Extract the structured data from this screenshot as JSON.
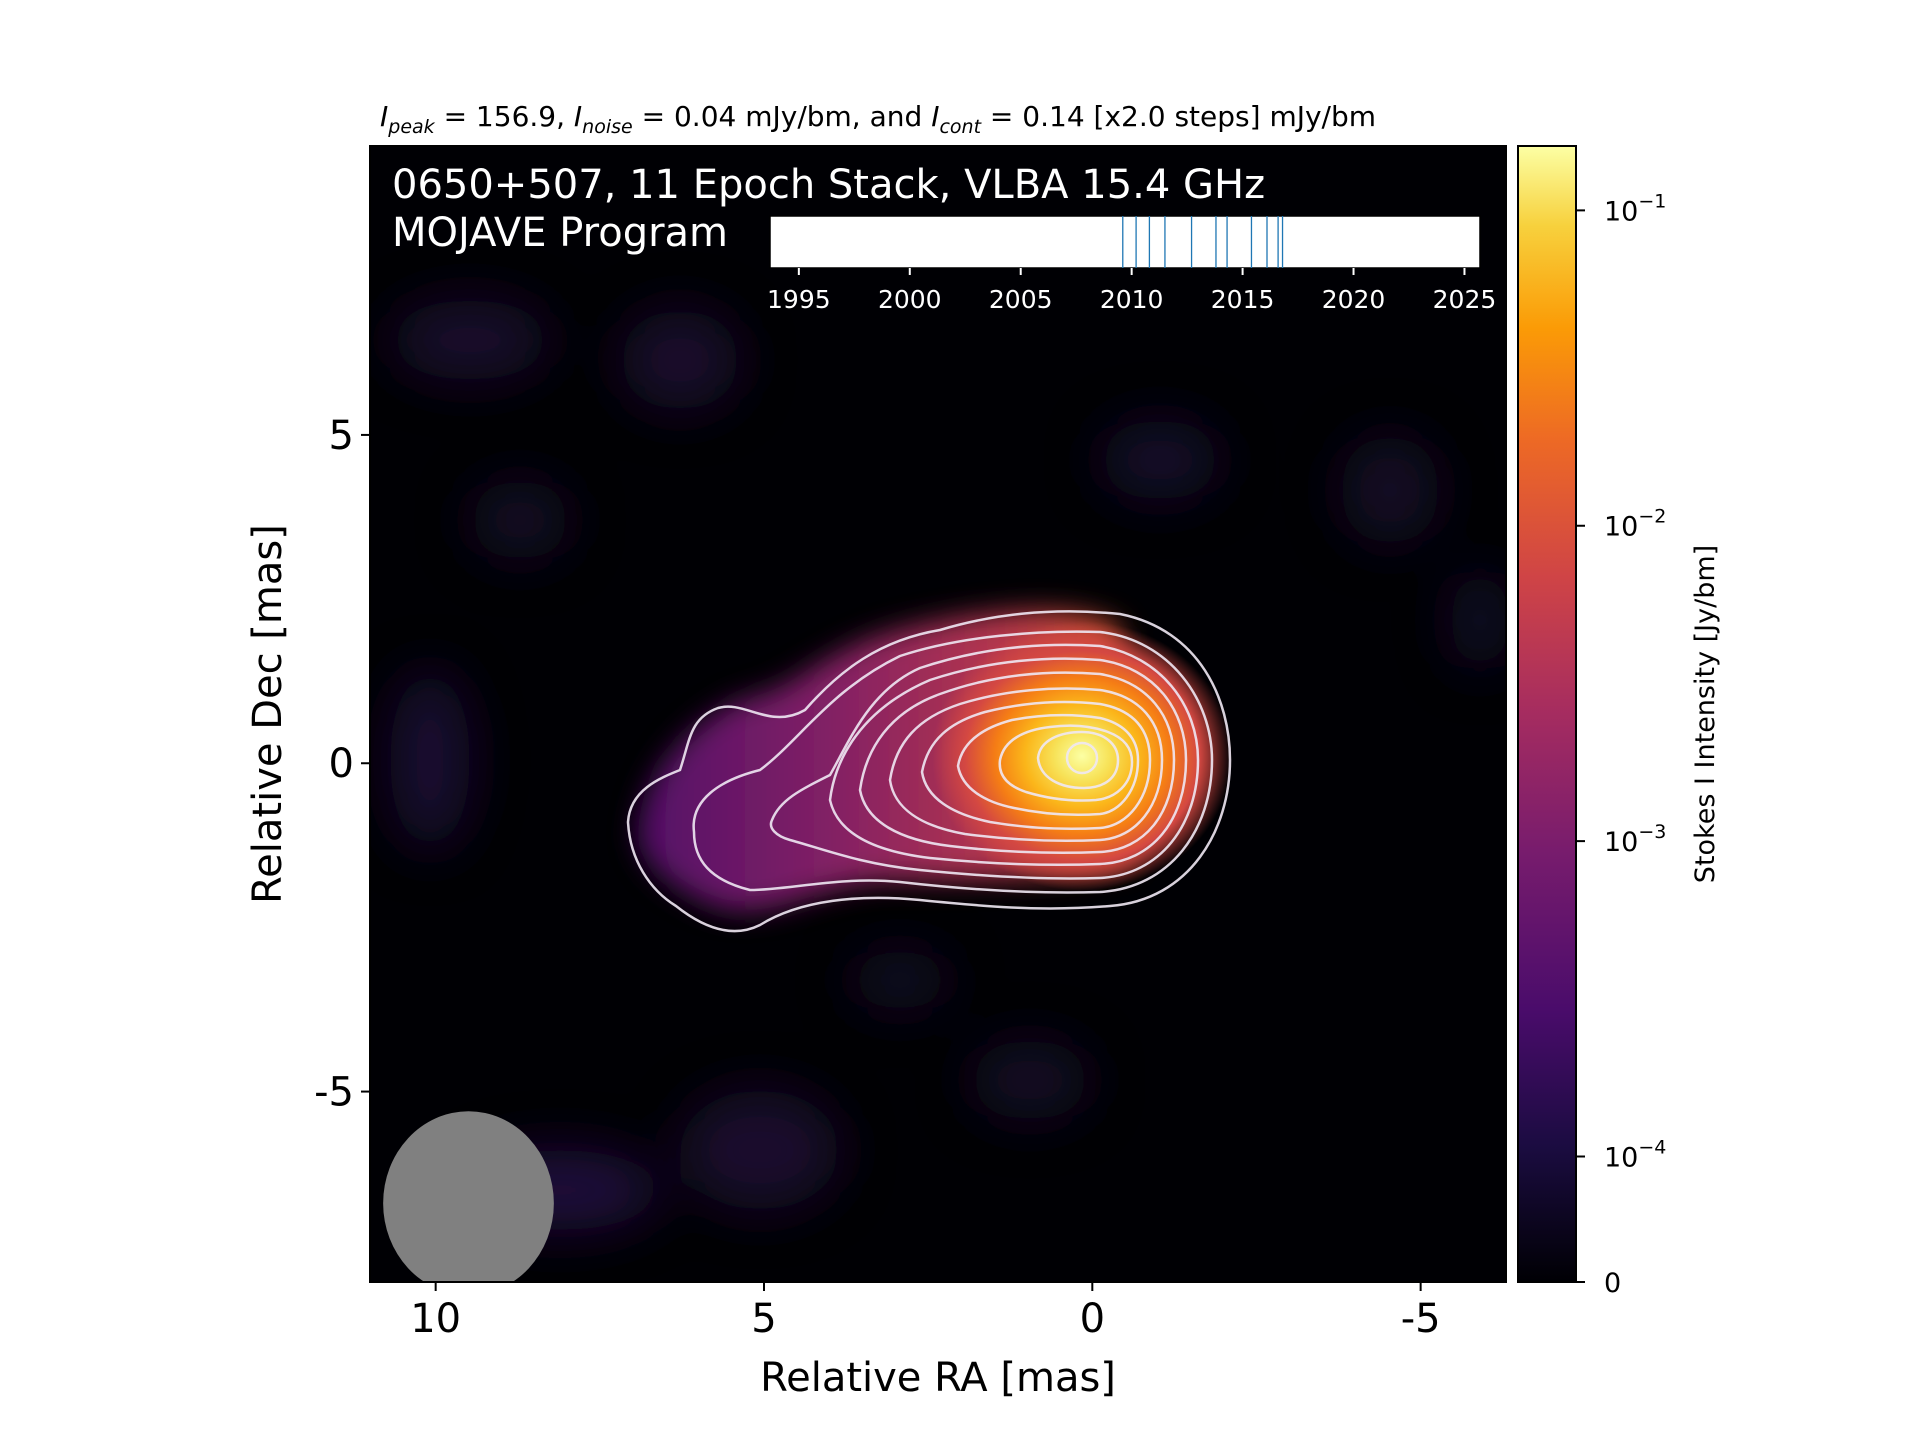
{
  "header": {
    "peak_sym": "I",
    "peak_sub": "peak",
    "peak_text": " = 156.9, ",
    "noise_sym": "I",
    "noise_sub": "noise",
    "noise_text": " = 0.04 mJy/bm, and ",
    "cont_sym": "I",
    "cont_sub": "cont",
    "cont_text": " = 0.14 [x2.0 steps] mJy/bm"
  },
  "panel": {
    "title_line1": "0650+507, 11 Epoch Stack, VLBA 15.4 GHz",
    "title_line2": "MOJAVE Program"
  },
  "colors": {
    "background": "#000004",
    "contour": "#f0e8f4",
    "beam": "#808080",
    "epoch_line": "#1f77b4"
  },
  "chart_data": {
    "type": "heatmap",
    "colormap": "inferno",
    "xlabel": "Relative RA [mas]",
    "ylabel": "Relative Dec [mas]",
    "xlim": [
      11.0,
      -6.3
    ],
    "ylim": [
      -7.9,
      9.4
    ],
    "xticks": [
      10,
      5,
      0,
      -5
    ],
    "xtick_labels": [
      "10",
      "5",
      "0",
      "-5"
    ],
    "yticks": [
      5,
      0,
      -5
    ],
    "ytick_labels": [
      "5",
      "0",
      "-5"
    ],
    "contour_levels_mJy": [
      0.14,
      0.28,
      0.56,
      1.12,
      2.24,
      4.48,
      8.96,
      17.92,
      35.84,
      71.68,
      143.36
    ],
    "beam": {
      "ra": 9.5,
      "dec": -6.7,
      "major_mas": 1.4,
      "minor_mas": 1.3
    },
    "colorbar": {
      "label": "Stokes I Intensity [Jy/bm]",
      "scale": "log",
      "tick_values": [
        0,
        0.0001,
        0.001,
        0.01,
        0.1
      ],
      "tick_labels": [
        {
          "base": "0",
          "exp": ""
        },
        {
          "base": "10",
          "exp": "−4"
        },
        {
          "base": "10",
          "exp": "−3"
        },
        {
          "base": "10",
          "exp": "−2"
        },
        {
          "base": "10",
          "exp": "−1"
        }
      ]
    },
    "epoch_timeline": {
      "xlim": [
        1993.7,
        2025.7
      ],
      "ticks": [
        1995,
        2000,
        2005,
        2010,
        2015,
        2020,
        2025
      ],
      "tick_labels": [
        "1995",
        "2000",
        "2005",
        "2010",
        "2015",
        "2020",
        "2025"
      ],
      "epochs": [
        2009.6,
        2010.2,
        2010.8,
        2011.5,
        2012.7,
        2013.8,
        2014.3,
        2015.4,
        2016.1,
        2016.6,
        2016.8
      ]
    }
  }
}
